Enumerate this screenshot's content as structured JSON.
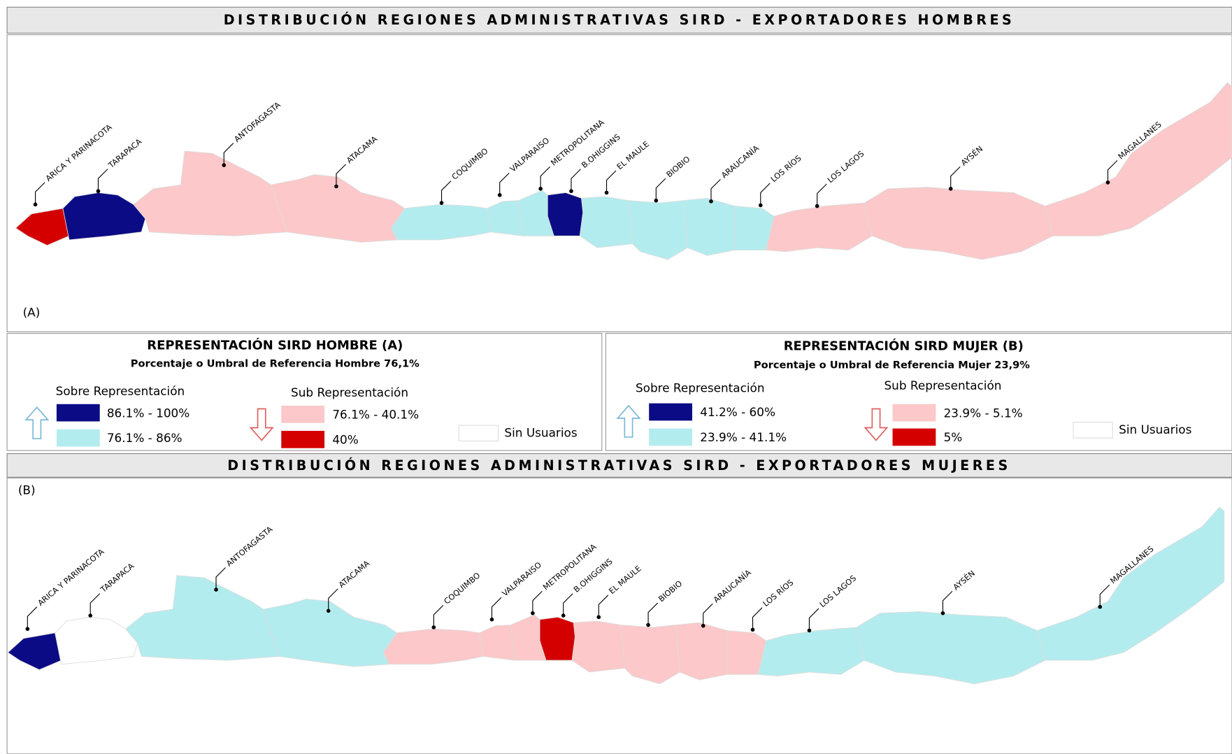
{
  "maps": [
    {
      "title": "DISTRIBUCIÓN REGIONES ADMINISTRATIVAS SIRD - EXPORTADORES HOMBRES",
      "panel": "(A)",
      "regions": [
        {
          "name": "ARICA Y PARINACOTA",
          "color": "#d40000"
        },
        {
          "name": "TARAPACA",
          "color": "#0b0b85"
        },
        {
          "name": "ANTOFAGASTA",
          "color": "#fcc8c9"
        },
        {
          "name": "ATACAMA",
          "color": "#fcc8c9"
        },
        {
          "name": "COQUIMBO",
          "color": "#b3ecee"
        },
        {
          "name": "VALPARAISO",
          "color": "#b3ecee"
        },
        {
          "name": "METROPOLITANA",
          "color": "#b3ecee"
        },
        {
          "name": "B.OHIGGINS",
          "color": "#0b0b85"
        },
        {
          "name": "EL MAULE",
          "color": "#b3ecee"
        },
        {
          "name": "BIOBIO",
          "color": "#b3ecee"
        },
        {
          "name": "ARAUCANÍA",
          "color": "#b3ecee"
        },
        {
          "name": "LOS RÍOS",
          "color": "#b3ecee"
        },
        {
          "name": "LOS LAGOS",
          "color": "#fcc8c9"
        },
        {
          "name": "AYSÉN",
          "color": "#fcc8c9"
        },
        {
          "name": "MAGALLANES",
          "color": "#fcc8c9"
        }
      ]
    },
    {
      "title": "DISTRIBUCIÓN REGIONES ADMINISTRATIVAS SIRD - EXPORTADORES MUJERES",
      "panel": "(B)",
      "regions": [
        {
          "name": "ARICA Y PARINACOTA",
          "color": "#0b0b85"
        },
        {
          "name": "TARAPACA",
          "color": "#ffffff"
        },
        {
          "name": "ANTOFAGASTA",
          "color": "#b3ecee"
        },
        {
          "name": "ATACAMA",
          "color": "#b3ecee"
        },
        {
          "name": "COQUIMBO",
          "color": "#fcc8c9"
        },
        {
          "name": "VALPARAISO",
          "color": "#fcc8c9"
        },
        {
          "name": "METROPOLITANA",
          "color": "#fcc8c9"
        },
        {
          "name": "B.OHIGGINS",
          "color": "#d40000"
        },
        {
          "name": "EL MAULE",
          "color": "#fcc8c9"
        },
        {
          "name": "BIOBIO",
          "color": "#fcc8c9"
        },
        {
          "name": "ARAUCANÍA",
          "color": "#fcc8c9"
        },
        {
          "name": "LOS RÍOS",
          "color": "#fcc8c9"
        },
        {
          "name": "LOS LAGOS",
          "color": "#b3ecee"
        },
        {
          "name": "AYSÉN",
          "color": "#b3ecee"
        },
        {
          "name": "MAGALLANES",
          "color": "#b3ecee"
        }
      ]
    }
  ],
  "legends": [
    {
      "title": "REPRESENTACIÓN  SIRD  HOMBRE (A)",
      "subtitle": "Porcentaje o Umbral de Referencia  Hombre 76,1%",
      "over": {
        "heading": "Sobre  Representación",
        "items": [
          {
            "label": "86.1% - 100%",
            "color": "#0b0b85"
          },
          {
            "label": "76.1% - 86%",
            "color": "#b3ecee"
          }
        ]
      },
      "under": {
        "heading": "Sub Representación",
        "items": [
          {
            "label": "76.1% - 40.1%",
            "color": "#fcc8c9"
          },
          {
            "label": "40%",
            "color": "#d40000"
          }
        ]
      },
      "none": {
        "label": "Sin Usuarios",
        "color": "#ffffff"
      }
    },
    {
      "title": "REPRESENTACIÓN SIRD  MUJER (B)",
      "subtitle": "Porcentaje o Umbral de Referencia  Mujer 23,9%",
      "over": {
        "heading": "Sobre  Representación",
        "items": [
          {
            "label": "41.2% - 60%",
            "color": "#0b0b85"
          },
          {
            "label": "23.9% - 41.1%",
            "color": "#b3ecee"
          }
        ]
      },
      "under": {
        "heading": "Sub Representación",
        "items": [
          {
            "label": "23.9% - 5.1%",
            "color": "#fcc8c9"
          },
          {
            "label": "5%",
            "color": "#d40000"
          }
        ]
      },
      "none": {
        "label": "Sin Usuarios",
        "color": "#ffffff"
      }
    }
  ]
}
